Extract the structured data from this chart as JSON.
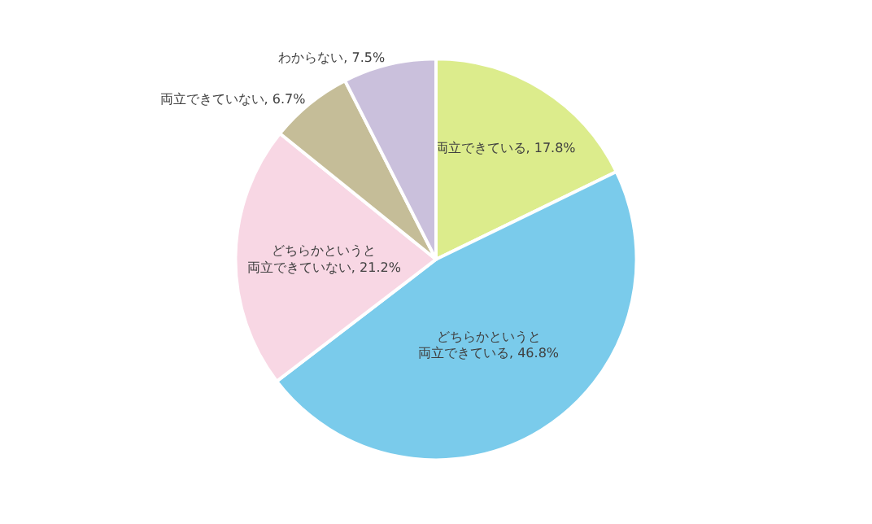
{
  "chart_data": {
    "type": "pie",
    "categories": [
      "両立できている",
      "どちらかというと両立できている",
      "どちらかというと両立できていない",
      "両立できていない",
      "わからない"
    ],
    "values": [
      17.8,
      46.8,
      21.2,
      6.7,
      7.5
    ],
    "value_labels": [
      "17.8%",
      "46.8%",
      "21.2%",
      "6.7%",
      "7.5%"
    ],
    "colors": [
      "#dcec8c",
      "#7acbeb",
      "#f8d7e4",
      "#c5bd98",
      "#cac0dc"
    ],
    "legend": false
  }
}
